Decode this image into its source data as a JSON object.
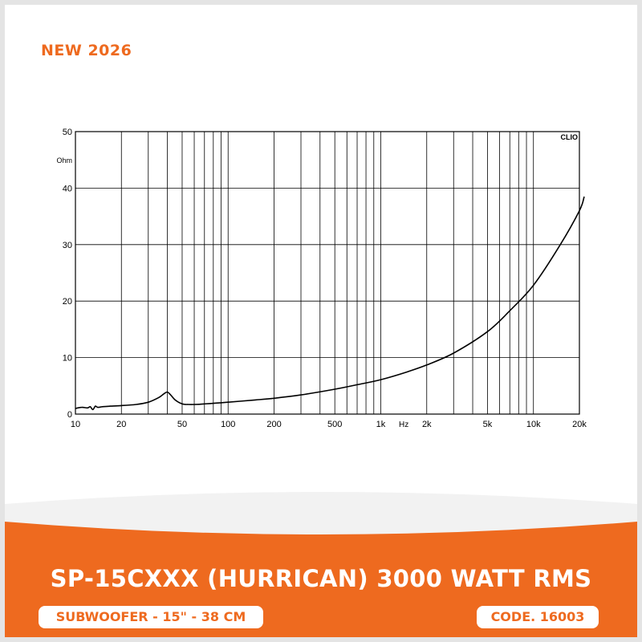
{
  "tag": "NEW 2026",
  "title": "SP-15CXXX (HURRICAN) 3000 WATT RMS",
  "subtitle": "SUBWOOFER - 15\" - 38 CM",
  "code": "CODE. 16003",
  "colors": {
    "accent": "#ee6a1f",
    "curve": "#000000"
  },
  "chart_data": {
    "type": "line",
    "title": "",
    "watermark": "CLIO",
    "xlabel": "Hz",
    "ylabel": "Ohm",
    "xscale": "log",
    "xlim": [
      10,
      20000
    ],
    "ylim": [
      0,
      50
    ],
    "grid": true,
    "yticks": [
      0,
      10,
      20,
      30,
      40,
      50
    ],
    "xtick_labels": [
      {
        "value": 10,
        "label": "10"
      },
      {
        "value": 20,
        "label": "20"
      },
      {
        "value": 50,
        "label": "50"
      },
      {
        "value": 100,
        "label": "100"
      },
      {
        "value": 200,
        "label": "200"
      },
      {
        "value": 500,
        "label": "500"
      },
      {
        "value": 1000,
        "label": "1k"
      },
      {
        "value": 2000,
        "label": "2k"
      },
      {
        "value": 5000,
        "label": "5k"
      },
      {
        "value": 10000,
        "label": "10k"
      },
      {
        "value": 20000,
        "label": "20k"
      }
    ],
    "series": [
      {
        "x": [
          10,
          11,
          12,
          12.5,
          13,
          13.5,
          14,
          15,
          17,
          20,
          25,
          30,
          35,
          38,
          40,
          42,
          45,
          50,
          55,
          60,
          70,
          80,
          100,
          150,
          200,
          300,
          500,
          700,
          1000,
          1500,
          2000,
          3000,
          5000,
          7000,
          10000,
          15000,
          20000,
          21500
        ],
        "y": [
          1.0,
          1.2,
          1.1,
          1.3,
          0.8,
          1.4,
          1.2,
          1.3,
          1.4,
          1.5,
          1.7,
          2.1,
          2.9,
          3.6,
          3.9,
          3.4,
          2.5,
          1.8,
          1.7,
          1.7,
          1.8,
          1.9,
          2.1,
          2.5,
          2.8,
          3.4,
          4.4,
          5.2,
          6.1,
          7.5,
          8.7,
          10.8,
          14.6,
          18.3,
          22.8,
          30.0,
          36.0,
          38.5
        ]
      }
    ]
  }
}
